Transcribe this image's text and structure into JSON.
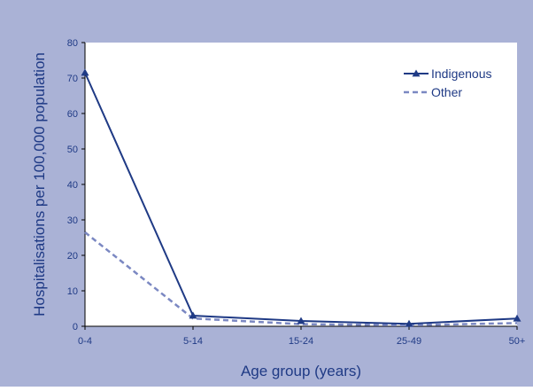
{
  "chart_data": {
    "type": "line",
    "categories": [
      "0-4",
      "5-14",
      "15-24",
      "25-49",
      "50+"
    ],
    "series": [
      {
        "name": "Indigenous",
        "values": [
          71.5,
          3.0,
          1.5,
          0.7,
          2.2
        ],
        "color": "#1f3a85",
        "style": "solid",
        "marker": "triangle"
      },
      {
        "name": "Other",
        "values": [
          26.5,
          2.2,
          0.6,
          0.3,
          0.9
        ],
        "color": "#7b88c2",
        "style": "dashed",
        "marker": "none"
      }
    ],
    "xlabel": "Age group (years)",
    "ylabel": "Hospitalisations per 100,000 population",
    "ylim": [
      0,
      80
    ],
    "yticks": [
      0,
      10,
      20,
      30,
      40,
      50,
      60,
      70,
      80
    ],
    "grid": false,
    "legend": "top-right"
  },
  "colors": {
    "frame_bg": "#aab2d6",
    "plot_bg": "#ffffff",
    "text": "#1f3a85"
  }
}
